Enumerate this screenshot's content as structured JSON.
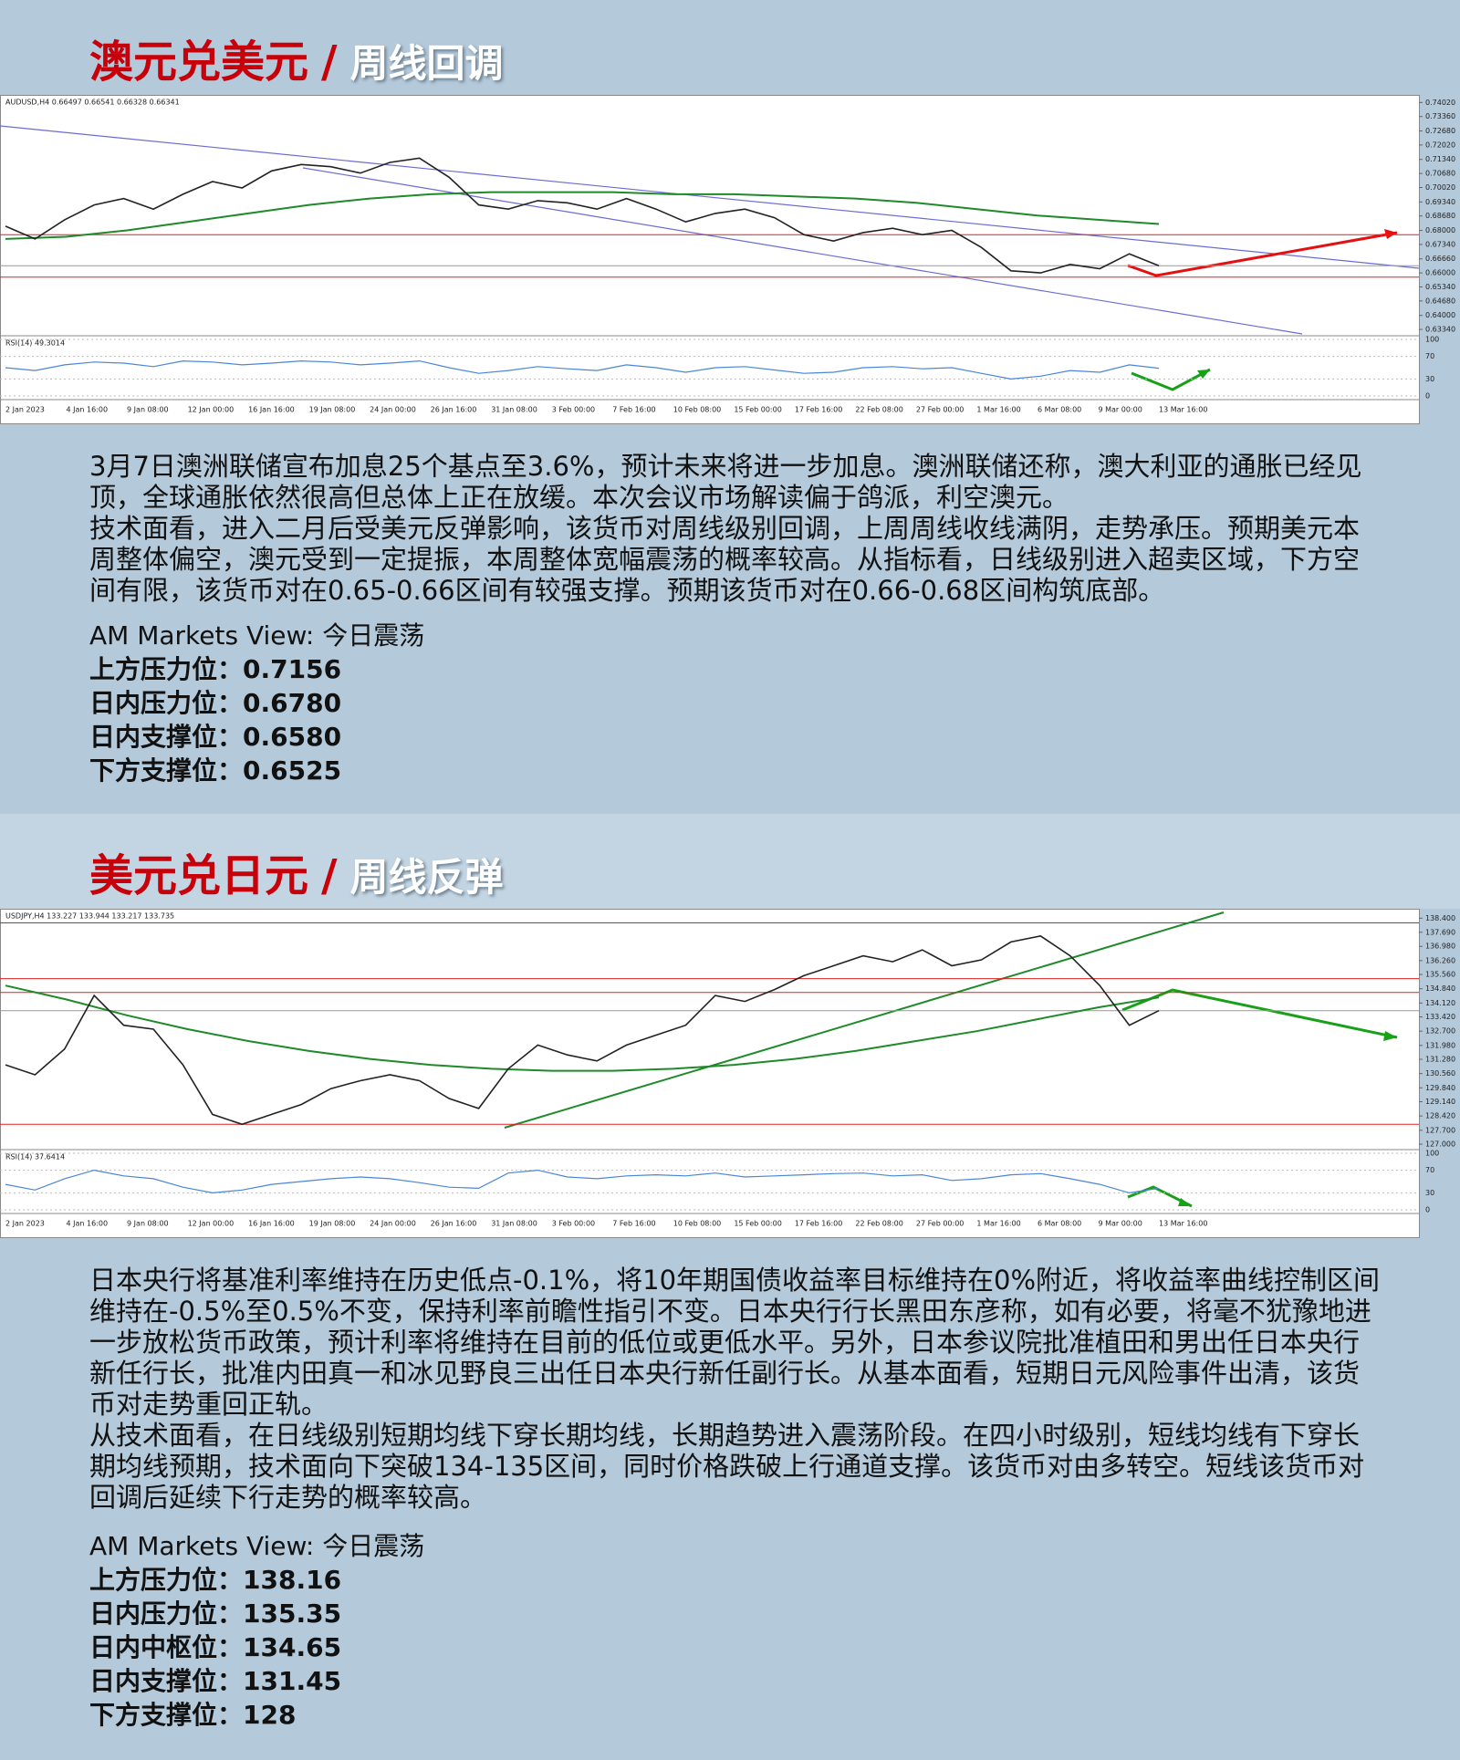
{
  "sections": [
    {
      "title": "澳元兑美元",
      "slash": "/",
      "subtitle": "周线回调",
      "chart": {
        "type": "line",
        "header": "AUDUSD,H4  0.66497 0.66541 0.66328 0.66341",
        "rsi_label": "RSI(14) 49.3014",
        "ylim": [
          0.633,
          0.7412
        ],
        "yticks": [
          {
            "value": 0.7402,
            "label": "0.74020"
          },
          {
            "value": 0.7336,
            "label": "0.73360"
          },
          {
            "value": 0.7268,
            "label": "0.72680"
          },
          {
            "value": 0.7202,
            "label": "0.72020"
          },
          {
            "value": 0.7134,
            "label": "0.71340"
          },
          {
            "value": 0.7068,
            "label": "0.70680"
          },
          {
            "value": 0.7002,
            "label": "0.70020"
          },
          {
            "value": 0.6934,
            "label": "0.69340"
          },
          {
            "value": 0.6868,
            "label": "0.68680"
          },
          {
            "value": 0.68,
            "label": "0.68000"
          },
          {
            "value": 0.6734,
            "label": "0.67340"
          },
          {
            "value": 0.6666,
            "label": "0.66660"
          },
          {
            "value": 0.66,
            "label": "0.66000"
          },
          {
            "value": 0.6534,
            "label": "0.65340"
          },
          {
            "value": 0.6468,
            "label": "0.64680"
          },
          {
            "value": 0.64,
            "label": "0.64000"
          },
          {
            "value": 0.6334,
            "label": "0.63340"
          }
        ],
        "xticks": [
          "2 Jan 2023",
          "4 Jan 16:00",
          "9 Jan 08:00",
          "12 Jan 00:00",
          "16 Jan 16:00",
          "19 Jan 08:00",
          "24 Jan 00:00",
          "26 Jan 16:00",
          "31 Jan 08:00",
          "3 Feb 00:00",
          "7 Feb 16:00",
          "10 Feb 08:00",
          "15 Feb 00:00",
          "17 Feb 16:00",
          "22 Feb 08:00",
          "27 Feb 00:00",
          "1 Mar 16:00",
          "6 Mar 08:00",
          "9 Mar 00:00",
          "13 Mar 16:00"
        ],
        "price": [
          0.682,
          0.676,
          0.685,
          0.692,
          0.695,
          0.69,
          0.697,
          0.703,
          0.7,
          0.708,
          0.711,
          0.71,
          0.707,
          0.712,
          0.714,
          0.705,
          0.692,
          0.69,
          0.694,
          0.693,
          0.69,
          0.695,
          0.69,
          0.684,
          0.688,
          0.69,
          0.686,
          0.678,
          0.675,
          0.679,
          0.681,
          0.678,
          0.68,
          0.672,
          0.661,
          0.66,
          0.664,
          0.662,
          0.669,
          0.6634
        ],
        "ma": [
          0.676,
          0.677,
          0.68,
          0.684,
          0.688,
          0.692,
          0.695,
          0.697,
          0.698,
          0.698,
          0.698,
          0.697,
          0.697,
          0.696,
          0.695,
          0.693,
          0.69,
          0.687,
          0.685,
          0.683
        ],
        "levels": [
          0.678,
          0.658
        ],
        "current": 0.6634,
        "rsi_ylim": [
          0,
          100
        ],
        "rsi_ticks": [
          100,
          70,
          30,
          0
        ],
        "rsi": [
          50,
          45,
          55,
          60,
          58,
          52,
          62,
          60,
          55,
          58,
          62,
          60,
          55,
          58,
          62,
          50,
          40,
          45,
          52,
          48,
          45,
          55,
          50,
          42,
          50,
          52,
          46,
          40,
          42,
          50,
          52,
          48,
          50,
          40,
          30,
          35,
          45,
          42,
          55,
          49
        ]
      },
      "paragraphs": [
        "3月7日澳洲联储宣布加息25个基点至3.6%，预计未来将进一步加息。澳洲联储还称，澳大利亚的通胀已经见顶，全球通胀依然很高但总体上正在放缓。本次会议市场解读偏于鸽派，利空澳元。",
        "技术面看，进入二月后受美元反弹影响，该货币对周线级别回调，上周周线收线满阴，走势承压。预期美元本周整体偏空，澳元受到一定提振，本周整体宽幅震荡的概率较高。从指标看，日线级别进入超卖区域，下方空间有限，该货币对在0.65-0.66区间有较强支撑。预期该货币对在0.66-0.68区间构筑底部。"
      ],
      "view": "AM Markets View: 今日震荡",
      "levels": [
        "上方压力位：0.7156",
        "日内压力位：0.6780",
        "日内支撑位：0.6580",
        "下方支撑位：0.6525"
      ]
    },
    {
      "title": "美元兑日元",
      "slash": "/",
      "subtitle": "周线反弹",
      "chart": {
        "type": "line",
        "header": "USDJPY,H4  133.227 133.944 133.217 133.735",
        "rsi_label": "RSI(14) 37.6414",
        "ylim": [
          127,
          138.6
        ],
        "yticks": [
          {
            "value": 138.4,
            "label": "138.400"
          },
          {
            "value": 137.69,
            "label": "137.690"
          },
          {
            "value": 136.98,
            "label": "136.980"
          },
          {
            "value": 136.26,
            "label": "136.260"
          },
          {
            "value": 135.56,
            "label": "135.560"
          },
          {
            "value": 134.84,
            "label": "134.840"
          },
          {
            "value": 134.12,
            "label": "134.120"
          },
          {
            "value": 133.42,
            "label": "133.420"
          },
          {
            "value": 132.7,
            "label": "132.700"
          },
          {
            "value": 131.98,
            "label": "131.980"
          },
          {
            "value": 131.28,
            "label": "131.280"
          },
          {
            "value": 130.56,
            "label": "130.560"
          },
          {
            "value": 129.84,
            "label": "129.840"
          },
          {
            "value": 129.14,
            "label": "129.140"
          },
          {
            "value": 128.42,
            "label": "128.420"
          },
          {
            "value": 127.7,
            "label": "127.700"
          },
          {
            "value": 127,
            "label": "127.000"
          }
        ],
        "xticks": [
          "2 Jan 2023",
          "4 Jan 16:00",
          "9 Jan 08:00",
          "12 Jan 00:00",
          "16 Jan 16:00",
          "19 Jan 08:00",
          "24 Jan 00:00",
          "26 Jan 16:00",
          "31 Jan 08:00",
          "3 Feb 00:00",
          "7 Feb 16:00",
          "10 Feb 08:00",
          "15 Feb 00:00",
          "17 Feb 16:00",
          "22 Feb 08:00",
          "27 Feb 00:00",
          "1 Mar 16:00",
          "6 Mar 08:00",
          "9 Mar 00:00",
          "13 Mar 16:00"
        ],
        "price": [
          131,
          130.5,
          131.8,
          134.5,
          133,
          132.8,
          131,
          128.5,
          128,
          128.5,
          129,
          129.8,
          130.2,
          130.5,
          130.2,
          129.3,
          128.8,
          130.8,
          132,
          131.5,
          131.2,
          132,
          132.5,
          133,
          134.5,
          134.2,
          134.8,
          135.5,
          136,
          136.5,
          136.2,
          136.8,
          136,
          136.3,
          137.2,
          137.5,
          136.5,
          135,
          133,
          133.735
        ],
        "ma": [
          135,
          134.3,
          133.5,
          132.8,
          132.2,
          131.7,
          131.3,
          131,
          130.8,
          130.7,
          130.7,
          130.8,
          131,
          131.3,
          131.7,
          132.2,
          132.7,
          133.3,
          133.9,
          134.4
        ],
        "levels": [
          138.16,
          135.35,
          134.65,
          128
        ],
        "current": 133.735,
        "rsi_ylim": [
          0,
          100
        ],
        "rsi_ticks": [
          100,
          70,
          30,
          0
        ],
        "rsi": [
          45,
          35,
          55,
          70,
          60,
          55,
          40,
          30,
          35,
          45,
          50,
          55,
          58,
          55,
          48,
          40,
          38,
          65,
          70,
          58,
          55,
          60,
          62,
          60,
          65,
          58,
          60,
          62,
          64,
          65,
          60,
          62,
          52,
          55,
          62,
          64,
          55,
          45,
          30,
          38
        ]
      },
      "paragraphs": [
        "日本央行将基准利率维持在历史低点-0.1%，将10年期国债收益率目标维持在0%附近，将收益率曲线控制区间维持在-0.5%至0.5%不变，保持利率前瞻性指引不变。日本央行行长黑田东彦称，如有必要，将毫不犹豫地进一步放松货币政策，预计利率将维持在目前的低位或更低水平。另外，日本参议院批准植田和男出任日本央行新任行长，批准内田真一和冰见野良三出任日本央行新任副行长。从基本面看，短期日元风险事件出清，该货币对走势重回正轨。",
        "从技术面看，在日线级别短期均线下穿长期均线，长期趋势进入震荡阶段。在四小时级别，短线均线有下穿长期均线预期，技术面向下突破134-135区间，同时价格跌破上行通道支撑。该货币对由多转空。短线该货币对回调后延续下行走势的概率较高。"
      ],
      "view": "AM Markets View: 今日震荡",
      "levels": [
        "上方压力位：138.16",
        "日内压力位：135.35",
        "日内中枢位：134.65",
        "日内支撑位：131.45",
        "下方支撑位：128"
      ]
    }
  ]
}
